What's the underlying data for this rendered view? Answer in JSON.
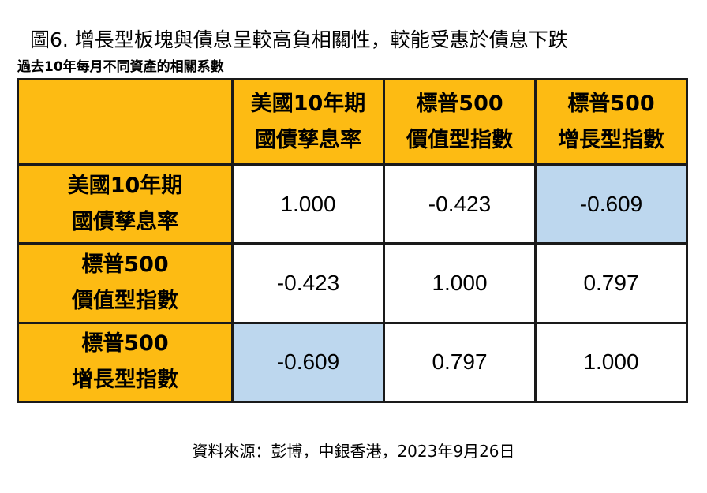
{
  "title": "圖6. 增長型板塊與債息呈較高負相關性，較能受惠於債息下跌",
  "subtitle": "過去10年每月不同資產的相關系數",
  "source": "資料來源：彭博，中銀香港，2023年9月26日",
  "colors": {
    "header_bg": "#fdbb13",
    "highlight": "#bdd7ee",
    "border": "#1a1a1a"
  },
  "chart_data": {
    "type": "table",
    "columns": [
      {
        "line1": "美國10年期",
        "line2": "國債孳息率"
      },
      {
        "line1": "標普500",
        "line2": "價值型指數"
      },
      {
        "line1": "標普500",
        "line2": "增長型指數"
      }
    ],
    "rows": [
      {
        "label": {
          "line1": "美國10年期",
          "line2": "國債孳息率"
        },
        "values": [
          "1.000",
          "-0.423",
          "-0.609"
        ],
        "highlight": [
          false,
          false,
          true
        ]
      },
      {
        "label": {
          "line1": "標普500",
          "line2": "價值型指數"
        },
        "values": [
          "-0.423",
          "1.000",
          "0.797"
        ],
        "highlight": [
          false,
          false,
          false
        ]
      },
      {
        "label": {
          "line1": "標普500",
          "line2": "增長型指數"
        },
        "values": [
          "-0.609",
          "0.797",
          "1.000"
        ],
        "highlight": [
          true,
          false,
          false
        ]
      }
    ]
  }
}
